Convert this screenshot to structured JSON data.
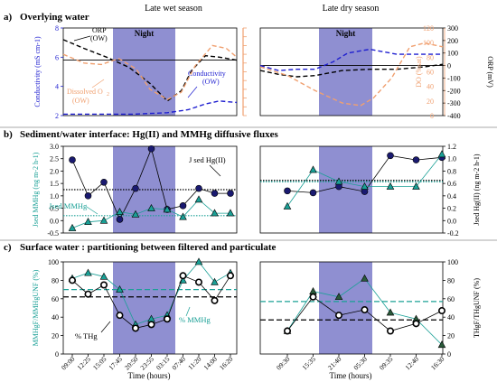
{
  "panels": {
    "a": {
      "label": "a)",
      "title": "Overlying water"
    },
    "b": {
      "label": "b)",
      "title": "Sediment/water interface: Hg(II) and MMHg diffusive fluxes"
    },
    "c": {
      "label": "c)",
      "title": "Surface water : partitioning between filtered and particulate"
    }
  },
  "seasons": {
    "wet": "Late wet season",
    "dry": "Late dry season"
  },
  "night_label": "Night",
  "colors": {
    "night": "#8f8fd1",
    "conductivity": "#1f1fd0",
    "orp": "#000000",
    "do": "#f0a070",
    "mmhg": "#1aa096",
    "thg": "#000000",
    "hg2": "#1a1a70"
  },
  "annotations": {
    "orp": "ORP (OW)",
    "conductivity": "Conductivity (OW)",
    "do": "Dissolved O2 (OW)",
    "jsed_hg": "J sed Hg(II)",
    "jsed_mmhg": "Jsed MMHg",
    "pct_mmhg": "% MMHg",
    "pct_thg": "% THg"
  },
  "chart_data": [
    {
      "type": "line",
      "panel": "a-wet",
      "ylabel": "Conductivity (mS cm-1)",
      "ylim": [
        2,
        8
      ],
      "yticks": [
        2,
        4,
        6,
        8
      ],
      "series": [
        {
          "name": "ORP (OW)",
          "style": "dashed",
          "t": [
            0.0,
            0.12,
            0.25,
            0.38,
            0.5,
            0.6,
            0.68,
            0.74,
            0.82,
            0.9,
            1.0
          ],
          "y": [
            7.2,
            6.6,
            6.0,
            5.3,
            4.2,
            3.0,
            3.7,
            5.1,
            6.1,
            6.0,
            5.8
          ]
        },
        {
          "name": "Conductivity (OW)",
          "style": "dashed",
          "t": [
            0.0,
            0.2,
            0.4,
            0.6,
            0.72,
            0.82,
            0.9,
            1.0
          ],
          "y": [
            2.1,
            2.1,
            2.1,
            2.2,
            2.4,
            2.8,
            3.0,
            2.9
          ]
        },
        {
          "name": "Dissolved O2 (OW)",
          "style": "dashed",
          "t": [
            0.0,
            0.12,
            0.22,
            0.32,
            0.42,
            0.5,
            0.6,
            0.68,
            0.76,
            0.86,
            0.94,
            1.0
          ],
          "y": [
            6.2,
            5.6,
            5.5,
            5.9,
            5.2,
            3.8,
            3.1,
            3.6,
            5.4,
            6.8,
            6.6,
            6.0
          ]
        }
      ]
    },
    {
      "type": "line",
      "panel": "a-dry",
      "ylabel": "ORP (mV)",
      "y2label": "DO (%sat)",
      "ylim": [
        -400,
        300
      ],
      "yticks": [
        -400,
        -300,
        -200,
        -100,
        0,
        100,
        200,
        300
      ],
      "y2ticks": [
        0,
        20,
        40,
        60,
        80,
        100,
        120
      ],
      "series": [
        {
          "name": "ORP (OW)",
          "style": "dashed",
          "t": [
            0.0,
            0.1,
            0.2,
            0.3,
            0.45,
            0.6,
            0.75,
            0.9,
            1.0
          ],
          "y": [
            -40,
            -70,
            -90,
            -80,
            -40,
            -30,
            -30,
            -10,
            10
          ]
        },
        {
          "name": "Conductivity (OW)",
          "style": "dashed",
          "t": [
            0.0,
            0.1,
            0.2,
            0.3,
            0.4,
            0.48,
            0.6,
            0.75,
            0.9,
            1.0
          ],
          "y": [
            0,
            -40,
            -30,
            -30,
            30,
            100,
            130,
            90,
            90,
            90
          ]
        },
        {
          "name": "Dissolved O2 (OW)",
          "style": "dashed",
          "t": [
            0.0,
            0.15,
            0.3,
            0.45,
            0.55,
            0.62,
            0.72,
            0.82,
            0.9,
            1.0
          ],
          "y": [
            -10,
            -80,
            -200,
            -300,
            -320,
            -260,
            -100,
            150,
            180,
            150
          ]
        }
      ]
    },
    {
      "type": "scatter",
      "panel": "b-wet",
      "ylabel": "Jsed MMHg (ng m-2 h-1)",
      "ylim": [
        -0.5,
        3.0
      ],
      "yticks": [
        -0.5,
        0.0,
        0.5,
        1.0,
        1.5,
        2.0,
        2.5,
        3.0
      ],
      "series": [
        {
          "name": "J sed Hg(II)",
          "x": [
            0,
            1,
            2,
            3,
            4,
            5,
            6,
            7,
            8,
            9,
            10
          ],
          "y": [
            2.45,
            1.0,
            1.55,
            0.05,
            1.3,
            2.9,
            0.45,
            0.6,
            1.3,
            1.1,
            1.1
          ]
        },
        {
          "name": "Jsed MMHg",
          "x": [
            0,
            1,
            2,
            3,
            4,
            5,
            6,
            7,
            8,
            9,
            10
          ],
          "y": [
            -0.3,
            -0.05,
            0.0,
            0.35,
            0.25,
            0.5,
            0.45,
            0.15,
            0.85,
            0.3,
            0.3
          ]
        }
      ],
      "hlines": [
        1.25,
        0.2
      ]
    },
    {
      "type": "scatter",
      "panel": "b-dry",
      "ylabel": "Jsed Hg(II) (ng m-2 h-1)",
      "ylim": [
        -0.2,
        1.2
      ],
      "yticks": [
        -0.2,
        0.0,
        0.2,
        0.4,
        0.6,
        0.8,
        1.0,
        1.2
      ],
      "series": [
        {
          "name": "J sed Hg(II)",
          "x": [
            0,
            1,
            2,
            3,
            4,
            5,
            6
          ],
          "y": [
            0.48,
            0.45,
            0.55,
            0.47,
            1.05,
            0.98,
            1.02
          ]
        },
        {
          "name": "Jsed MMHg",
          "x": [
            0,
            1,
            2,
            3,
            4,
            5,
            6
          ],
          "y": [
            0.23,
            0.82,
            0.63,
            0.55,
            0.55,
            0.55,
            1.07
          ]
        }
      ],
      "hlines": [
        0.65
      ]
    },
    {
      "type": "line",
      "panel": "c-wet",
      "ylabel": "MMHgF/MMHgUNF (%)",
      "ylim": [
        0,
        100
      ],
      "yticks": [
        0,
        20,
        40,
        60,
        80,
        100
      ],
      "categories": [
        "09:00",
        "12:25",
        "15:05",
        "17:45",
        "20:50",
        "23:55",
        "03:15",
        "07:40",
        "11:20",
        "14:00",
        "16:20"
      ],
      "series": [
        {
          "name": "% MMHg",
          "values": [
            82,
            88,
            84,
            70,
            32,
            38,
            42,
            80,
            100,
            78,
            88
          ]
        },
        {
          "name": "% THg",
          "values": [
            80,
            65,
            75,
            42,
            28,
            32,
            38,
            85,
            78,
            58,
            85
          ]
        }
      ],
      "hlines": [
        70,
        62
      ]
    },
    {
      "type": "line",
      "panel": "c-dry",
      "ylabel": "THgF/THgUNF (%)",
      "ylim": [
        0,
        100
      ],
      "yticks": [
        0,
        20,
        40,
        60,
        80,
        100
      ],
      "categories": [
        "09:30",
        "15:35",
        "21:40",
        "05:30",
        "09:35",
        "12:40",
        "16:30"
      ],
      "series": [
        {
          "name": "% MMHg",
          "values": [
            25,
            68,
            62,
            82,
            45,
            38,
            10
          ]
        },
        {
          "name": "% THg",
          "values": [
            25,
            62,
            42,
            48,
            25,
            33,
            47
          ]
        }
      ],
      "hlines": [
        57,
        37
      ]
    }
  ],
  "xlabel": "Time (hours)",
  "wet_ticks": [
    "09:00",
    "12:25",
    "15:05",
    "17:45",
    "20:50",
    "23:55",
    "03:15",
    "07:40",
    "11:20",
    "14:00",
    "16:20"
  ],
  "dry_ticks": [
    "09:30",
    "15:35",
    "21:40",
    "05:30",
    "09:35",
    "12:40",
    "16:30"
  ]
}
